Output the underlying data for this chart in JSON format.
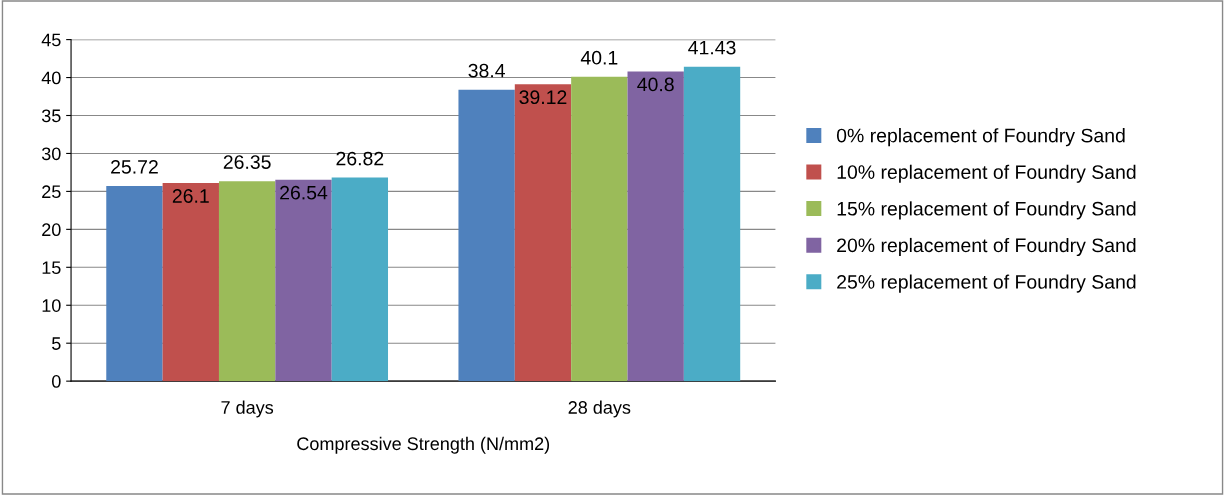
{
  "chart_data": {
    "type": "bar",
    "xlabel": "Compressive Strength (N/mm2)",
    "categories": [
      "7 days",
      "28 days"
    ],
    "series": [
      {
        "name": "0% replacement of Foundry Sand",
        "color": "#4f81bd",
        "values": [
          25.72,
          38.4
        ]
      },
      {
        "name": "10% replacement of Foundry Sand",
        "color": "#c0504d",
        "values": [
          26.1,
          39.12
        ]
      },
      {
        "name": "15% replacement of Foundry Sand",
        "color": "#9bbb59",
        "values": [
          26.35,
          40.1
        ]
      },
      {
        "name": "20% replacement of Foundry Sand",
        "color": "#8064a2",
        "values": [
          26.54,
          40.8
        ]
      },
      {
        "name": "25% replacement of Foundry Sand",
        "color": "#4bacc6",
        "values": [
          26.82,
          41.43
        ]
      }
    ],
    "ylim": [
      0,
      45
    ],
    "yticks": [
      0,
      5,
      10,
      15,
      20,
      25,
      30,
      35,
      40,
      45
    ],
    "grid": "y",
    "legend": "right",
    "data_labels": true
  }
}
